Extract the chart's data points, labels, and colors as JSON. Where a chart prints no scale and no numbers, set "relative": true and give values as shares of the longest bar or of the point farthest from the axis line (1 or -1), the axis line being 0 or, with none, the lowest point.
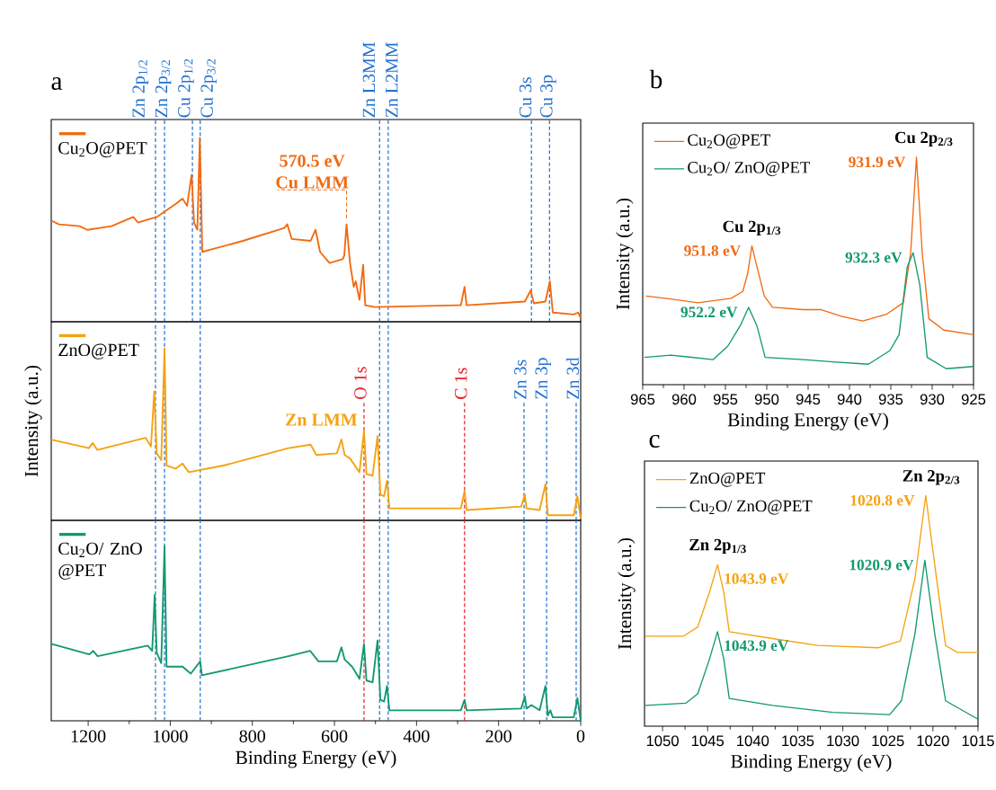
{
  "chart_data": [
    {
      "type": "line",
      "title": "a",
      "relative": true,
      "xlim": [
        1290,
        0
      ],
      "legend": "top left",
      "series": [
        {
          "name": "Cu$_{2}$O@PET",
          "color": "#f26a10",
          "x": [
            1290,
            1271,
            1221,
            1202,
            1143,
            1090,
            1079,
            1033,
            987,
            970,
            959,
            948,
            942,
            934,
            928,
            922,
            905,
            823,
            722,
            715,
            704,
            658,
            646,
            635,
            612,
            580,
            576,
            570.5,
            562,
            553,
            548,
            539,
            530,
            525,
            502,
            292,
            283,
            278,
            136,
            122,
            114,
            86,
            75,
            68,
            17,
            6,
            0
          ],
          "values": [
            0.55,
            0.53,
            0.52,
            0.5,
            0.52,
            0.57,
            0.54,
            0.57,
            0.64,
            0.67,
            0.63,
            0.8,
            0.54,
            0.5,
            1,
            0.38,
            0.39,
            0.44,
            0.51,
            0.53,
            0.45,
            0.44,
            0.5,
            0.38,
            0.32,
            0.34,
            0.36,
            0.53,
            0.32,
            0.19,
            0.22,
            0.12,
            0.31,
            0.09,
            0.08,
            0.09,
            0.19,
            0.09,
            0.11,
            0.17,
            0.1,
            0.11,
            0.22,
            0.05,
            0.04,
            0.05,
            0.02
          ]
        }
      ],
      "ref_lines": [
        {
          "axis": "x",
          "value": 1036,
          "label": "Zn 2p$_{1/2}$",
          "color": "#1f6fd0",
          "line_style": "dashed"
        },
        {
          "axis": "x",
          "value": 1014,
          "label": "Zn 2p$_{3/2}$",
          "color": "#1f6fd0",
          "line_style": "dashed"
        },
        {
          "axis": "x",
          "value": 946,
          "label": "Cu 2p$_{1/2}$",
          "color": "#1f6fd0",
          "line_style": "dashed"
        },
        {
          "axis": "x",
          "value": 927,
          "label": "Cu 2p$_{3/2}$",
          "color": "#1f6fd0",
          "line_style": "dashed"
        },
        {
          "axis": "x",
          "value": 490,
          "label": "Zn L3MM",
          "color": "#1f6fd0",
          "line_style": "dashed"
        },
        {
          "axis": "x",
          "value": 469,
          "label": "Zn L2MM",
          "color": "#1f6fd0",
          "line_style": "dashed"
        },
        {
          "axis": "x",
          "value": 120,
          "label": "Cu 3s",
          "color": "#1f6fd0",
          "line_style": "dashed"
        },
        {
          "axis": "x",
          "value": 76,
          "label": "Cu 3p",
          "color": "#1f6fd0",
          "line_style": "dashed"
        }
      ],
      "annotations": [
        {
          "text": "570.5 eV",
          "x": 570.5,
          "y": 0.53
        },
        {
          "text": "Cu LMM",
          "x": 570.5,
          "y": 0.53
        }
      ]
    },
    {
      "type": "line",
      "ylabel": "Intensity (a.u.)",
      "relative": true,
      "xlim": [
        1290,
        0
      ],
      "legend": "top left",
      "series": [
        {
          "name": "ZnO@PET",
          "color": "#f5a20f",
          "x": [
            1290,
            1198,
            1189,
            1178,
            1060,
            1047,
            1039,
            1033,
            1022,
            1014,
            1009,
            987,
            970,
            955,
            868,
            712,
            658,
            644,
            594,
            583,
            575,
            562,
            539,
            528,
            522,
            507,
            495,
            488,
            479,
            472,
            466,
            292,
            283,
            278,
            145,
            136,
            132,
            100,
            86,
            80,
            17,
            8,
            0
          ],
          "values": [
            0.47,
            0.42,
            0.45,
            0.41,
            0.48,
            0.43,
            0.75,
            0.39,
            0.35,
            1,
            0.32,
            0.3,
            0.33,
            0.28,
            0.32,
            0.42,
            0.44,
            0.38,
            0.39,
            0.47,
            0.38,
            0.36,
            0.28,
            0.52,
            0.27,
            0.26,
            0.49,
            0.15,
            0.14,
            0.23,
            0.07,
            0.07,
            0.17,
            0.06,
            0.08,
            0.15,
            0.07,
            0.06,
            0.21,
            0.03,
            0.03,
            0.14,
            0.01
          ]
        }
      ],
      "ref_lines": [
        {
          "axis": "x",
          "value": 1036,
          "color": "#1f6fd0",
          "line_style": "dashed"
        },
        {
          "axis": "x",
          "value": 1014,
          "color": "#1f6fd0",
          "line_style": "dashed"
        },
        {
          "axis": "x",
          "value": 927,
          "color": "#1f6fd0",
          "line_style": "dashed"
        },
        {
          "axis": "x",
          "value": 490,
          "color": "#1f6fd0",
          "line_style": "dashed"
        },
        {
          "axis": "x",
          "value": 469,
          "color": "#1f6fd0",
          "line_style": "dashed"
        },
        {
          "axis": "x",
          "value": 528,
          "label": "O 1s",
          "color": "#e8202a",
          "line_style": "dashed"
        },
        {
          "axis": "x",
          "value": 283,
          "label": "C 1s",
          "color": "#e8202a",
          "line_style": "dashed"
        },
        {
          "axis": "x",
          "value": 138,
          "label": "Zn 3s",
          "color": "#1f6fd0",
          "line_style": "dashed"
        },
        {
          "axis": "x",
          "value": 83,
          "label": "Zn 3p",
          "color": "#1f6fd0",
          "line_style": "dashed"
        },
        {
          "axis": "x",
          "value": 11,
          "label": "Zn 3d",
          "color": "#1f6fd0",
          "line_style": "dashed"
        }
      ],
      "annotations": [
        "Zn LMM"
      ]
    },
    {
      "type": "line",
      "xlabel": "Binding Energy (eV)",
      "relative": true,
      "xlim": [
        1290,
        0
      ],
      "xticks": [
        1200,
        1000,
        800,
        600,
        400,
        200,
        0
      ],
      "legend": "top left",
      "series": [
        {
          "name": "Cu$_{2}$O/ ZnO @PET",
          "color": "#12996f",
          "x": [
            1290,
            1197,
            1188,
            1177,
            1055,
            1044,
            1038,
            1033,
            1022,
            1014,
            1009,
            970,
            950,
            927,
            923,
            712,
            659,
            639,
            594,
            583,
            575,
            557,
            539,
            528,
            522,
            507,
            495,
            488,
            479,
            472,
            466,
            292,
            283,
            278,
            145,
            136,
            132,
            120,
            100,
            86,
            80,
            74,
            68,
            17,
            8,
            0
          ],
          "values": [
            0.44,
            0.38,
            0.4,
            0.37,
            0.43,
            0.4,
            0.72,
            0.39,
            0.33,
            1,
            0.31,
            0.31,
            0.27,
            0.34,
            0.26,
            0.37,
            0.4,
            0.34,
            0.34,
            0.42,
            0.35,
            0.31,
            0.24,
            0.44,
            0.23,
            0.22,
            0.46,
            0.12,
            0.11,
            0.2,
            0.06,
            0.06,
            0.12,
            0.06,
            0.07,
            0.14,
            0.07,
            0.09,
            0.06,
            0.2,
            0.03,
            0.06,
            0.02,
            0.02,
            0.13,
            0
          ]
        }
      ],
      "ref_lines": [
        {
          "axis": "x",
          "value": 1036,
          "color": "#1f6fd0",
          "line_style": "dashed"
        },
        {
          "axis": "x",
          "value": 1014,
          "color": "#1f6fd0",
          "line_style": "dashed"
        },
        {
          "axis": "x",
          "value": 927,
          "color": "#1f6fd0",
          "line_style": "dashed"
        },
        {
          "axis": "x",
          "value": 490,
          "color": "#1f6fd0",
          "line_style": "dashed"
        },
        {
          "axis": "x",
          "value": 469,
          "color": "#1f6fd0",
          "line_style": "dashed"
        },
        {
          "axis": "x",
          "value": 528,
          "color": "#e8202a",
          "line_style": "dashed"
        },
        {
          "axis": "x",
          "value": 283,
          "color": "#e8202a",
          "line_style": "dashed"
        },
        {
          "axis": "x",
          "value": 138,
          "color": "#1f6fd0",
          "line_style": "dashed"
        },
        {
          "axis": "x",
          "value": 83,
          "color": "#1f6fd0",
          "line_style": "dashed"
        },
        {
          "axis": "x",
          "value": 11,
          "color": "#1f6fd0",
          "line_style": "dashed"
        }
      ]
    },
    {
      "type": "line",
      "title": "b",
      "xlabel": "Binding Energy (eV)",
      "ylabel": "Intensity (a.u.)",
      "relative": true,
      "xlim": [
        965,
        925
      ],
      "xticks": [
        965,
        960,
        955,
        950,
        945,
        940,
        935,
        930,
        925
      ],
      "legend": "top left",
      "series": [
        {
          "name": "Cu$_{2}$O@PET",
          "color": "#f26a10",
          "x": [
            964.6,
            962.3,
            958.3,
            954.3,
            952.9,
            952.3,
            951.8,
            951.2,
            950.3,
            949.3,
            945.6,
            943.5,
            940.9,
            938.4,
            935.5,
            933.5,
            932.6,
            931.9,
            931.2,
            930.4,
            928.6,
            925
          ],
          "values": [
            0.39,
            0.38,
            0.36,
            0.38,
            0.41,
            0.49,
            0.61,
            0.52,
            0.39,
            0.34,
            0.33,
            0.33,
            0.3,
            0.28,
            0.31,
            0.36,
            0.58,
            1,
            0.58,
            0.29,
            0.24,
            0.22
          ]
        },
        {
          "name": "Cu$_{2}$O/ ZnO@PET",
          "color": "#12996f",
          "x": [
            964.8,
            961.6,
            956.5,
            954.7,
            953.2,
            952.2,
            951.2,
            950.2,
            945.6,
            942.0,
            937.7,
            935.1,
            934.0,
            933.0,
            932.3,
            931.5,
            930.6,
            928.3,
            925
          ],
          "values": [
            0.12,
            0.13,
            0.11,
            0.17,
            0.26,
            0.34,
            0.26,
            0.12,
            0.11,
            0.1,
            0.09,
            0.15,
            0.22,
            0.52,
            0.58,
            0.44,
            0.12,
            0.07,
            0.08
          ]
        }
      ],
      "annotations": [
        "Cu 2p$_{2/3}$",
        "Cu 2p$_{1/3}$",
        {
          "text": "931.9 eV",
          "x": 931.9,
          "y": 1
        },
        {
          "text": "951.8 eV",
          "x": 951.8,
          "y": 0.61
        },
        {
          "text": "932.3 eV",
          "x": 932.3,
          "y": 0.58
        },
        {
          "text": "952.2 eV",
          "x": 952.2,
          "y": 0.34
        }
      ]
    },
    {
      "type": "line",
      "title": "c",
      "xlabel": "Binding Energy (eV)",
      "ylabel": "Intensity (a.u.)",
      "relative": true,
      "xlim": [
        1052,
        1015
      ],
      "xticks": [
        1050,
        1045,
        1040,
        1035,
        1030,
        1025,
        1020,
        1015
      ],
      "legend": "top left",
      "series": [
        {
          "name": "ZnO@PET",
          "color": "#f5a20f",
          "x": [
            1051.9,
            1047.7,
            1046.1,
            1044.8,
            1043.9,
            1043.2,
            1042.6,
            1037.8,
            1032.8,
            1026.1,
            1023.6,
            1022.0,
            1020.8,
            1019.6,
            1018.6,
            1017.3,
            1015
          ],
          "values": [
            0.39,
            0.39,
            0.43,
            0.58,
            0.7,
            0.58,
            0.41,
            0.38,
            0.35,
            0.34,
            0.37,
            0.64,
            1,
            0.64,
            0.35,
            0.32,
            0.32
          ]
        },
        {
          "name": "Cu$_{2}$O/ ZnO@PET",
          "color": "#12996f",
          "x": [
            1051.9,
            1047.4,
            1046.1,
            1044.8,
            1043.9,
            1043.2,
            1042.6,
            1037.8,
            1031.1,
            1024.8,
            1023.5,
            1022.0,
            1020.9,
            1019.8,
            1018.6,
            1015
          ],
          "values": [
            0.09,
            0.1,
            0.14,
            0.29,
            0.41,
            0.29,
            0.12,
            0.09,
            0.06,
            0.05,
            0.11,
            0.4,
            0.72,
            0.4,
            0.11,
            0.03
          ]
        }
      ],
      "annotations": [
        "Zn 2p$_{2/3}$",
        "Zn 2p$_{1/3}$",
        {
          "text": "1020.8 eV",
          "x": 1020.8,
          "y": 1
        },
        {
          "text": "1043.9 eV",
          "x": 1043.9,
          "y": 0.7
        },
        {
          "text": "1020.9 eV",
          "x": 1020.9,
          "y": 0.72
        },
        {
          "text": "1043.9 eV",
          "x": 1043.9,
          "y": 0.41
        }
      ]
    }
  ]
}
